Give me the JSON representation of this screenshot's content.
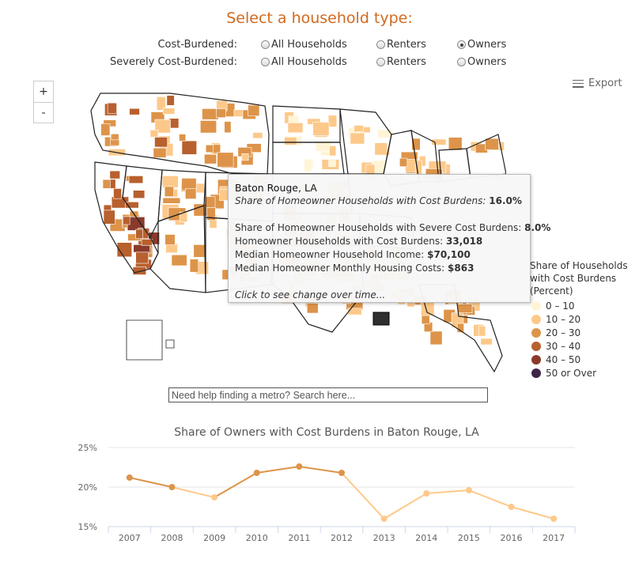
{
  "header": {
    "title": "Select a household type:"
  },
  "filters": {
    "rows": [
      {
        "label": "Cost-Burdened:",
        "options": [
          "All Households",
          "Renters",
          "Owners"
        ],
        "selected": 2
      },
      {
        "label": "Severely Cost-Burdened:",
        "options": [
          "All Households",
          "Renters",
          "Owners"
        ],
        "selected": -1
      }
    ]
  },
  "map": {
    "zoom_in": "+",
    "zoom_out": "-",
    "export_label": "Export",
    "highlighted_metro": "Baton Rouge, LA",
    "tooltip": {
      "title": "Baton Rouge, LA",
      "burden_label": "Share of Homeowner Households with Cost Burdens:",
      "burden_value": "16.0%",
      "severe_label": "Share of Homeowner Households with Severe Cost Burdens:",
      "severe_value": "8.0%",
      "count_label": "Homeowner Households with Cost Burdens:",
      "count_value": "33,018",
      "income_label": "Median Homeowner Household Income:",
      "income_value": "$70,100",
      "costs_label": "Median Homeowner Monthly Housing Costs:",
      "costs_value": "$863",
      "hint": "Click to see change over time..."
    },
    "legend": {
      "title": "Share of Households with Cost Burdens (Percent)",
      "items": [
        {
          "label": "0 – 10",
          "color": "#fff5d6"
        },
        {
          "label": "10 – 20",
          "color": "#fdc98a"
        },
        {
          "label": "20 – 30",
          "color": "#dd944a"
        },
        {
          "label": "30 – 40",
          "color": "#b8602e"
        },
        {
          "label": "40 – 50",
          "color": "#8a3a2a"
        },
        {
          "label": "50 or Over",
          "color": "#3f2548"
        }
      ]
    }
  },
  "search": {
    "placeholder": "Need help finding a metro? Search here..."
  },
  "chart_data": {
    "type": "line",
    "title": "Share of Owners with Cost Burdens in Baton Rouge, LA",
    "categories": [
      "2007",
      "2008",
      "2009",
      "2010",
      "2011",
      "2012",
      "2013",
      "2014",
      "2015",
      "2016",
      "2017"
    ],
    "values": [
      21.2,
      20.0,
      18.7,
      21.8,
      22.6,
      21.8,
      16.0,
      19.2,
      19.6,
      17.5,
      16.0
    ],
    "point_colors": [
      "#dd944a",
      "#dd944a",
      "#fdc98a",
      "#dd944a",
      "#dd944a",
      "#dd944a",
      "#fdc98a",
      "#fdc98a",
      "#fdc98a",
      "#fdc98a",
      "#fdc98a"
    ],
    "yticks": [
      "15%",
      "20%",
      "25%"
    ],
    "ylim": [
      15,
      25
    ],
    "grid": true
  }
}
